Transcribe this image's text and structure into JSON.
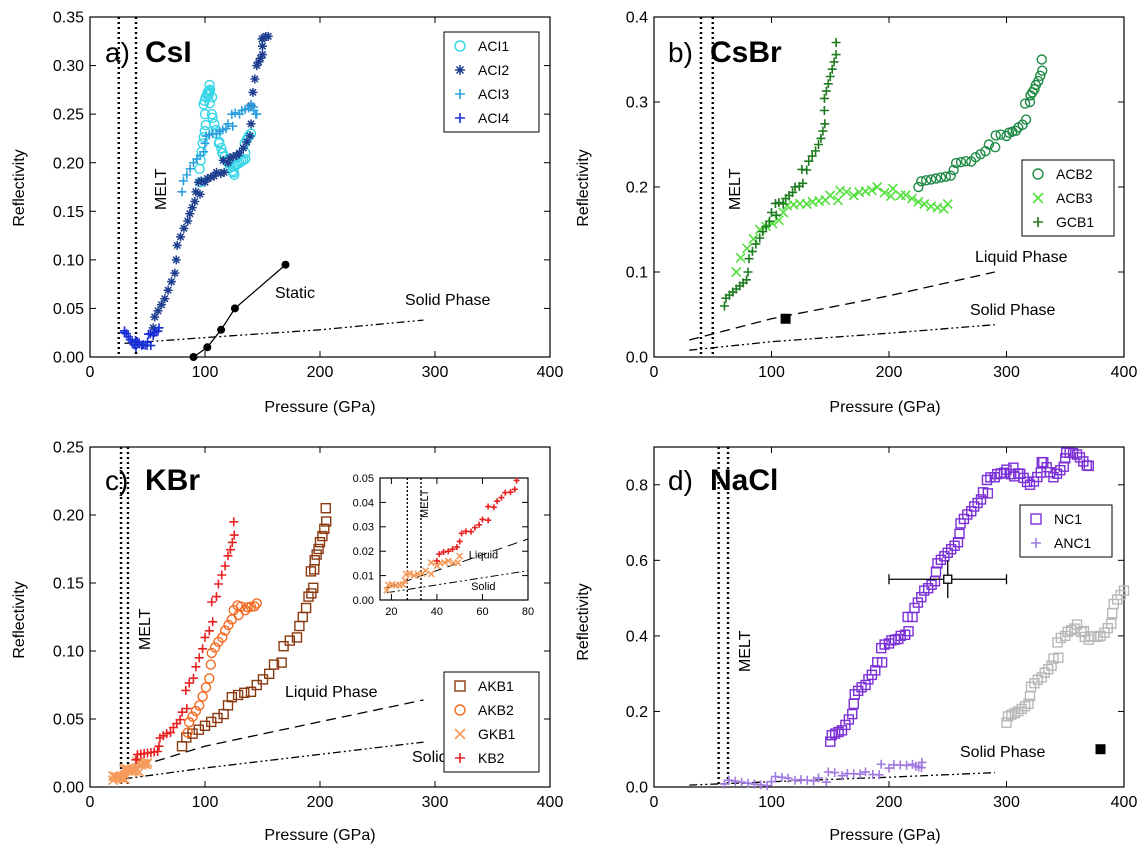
{
  "figure": {
    "panels": [
      {
        "panel_label": "a)",
        "material": "CsI",
        "xlabel": "Pressure (GPa)",
        "ylabel": "Reflectivity",
        "melt_label": "MELT"
      },
      {
        "panel_label": "b)",
        "material": "CsBr",
        "xlabel": "Pressure (GPa)",
        "ylabel": "Reflectivity",
        "melt_label": "MELT"
      },
      {
        "panel_label": "c)",
        "material": "KBr",
        "xlabel": "Pressure (GPa)",
        "ylabel": "Reflectivity",
        "melt_label": "MELT"
      },
      {
        "panel_label": "d)",
        "material": "NaCl",
        "xlabel": "Pressure (GPa)",
        "ylabel": "Reflectivity",
        "melt_label": "MELT"
      }
    ]
  },
  "chart_data": [
    {
      "type": "scatter",
      "title": "a) CsI",
      "xlabel": "Pressure (GPa)",
      "ylabel": "Reflectivity",
      "xlim": [
        0,
        400
      ],
      "ylim": [
        0,
        0.35
      ],
      "xticks": [
        0,
        100,
        200,
        300,
        400
      ],
      "yticks": [
        0.0,
        0.05,
        0.1,
        0.15,
        0.2,
        0.25,
        0.3,
        0.35
      ],
      "ytick_labels": [
        "0.00",
        "0.05",
        "0.10",
        "0.15",
        "0.20",
        "0.25",
        "0.30",
        "0.35"
      ],
      "grid": false,
      "legend_position": "top-right",
      "melt_lines_x": [
        25,
        40
      ],
      "series": [
        {
          "name": "ACI1",
          "marker": "circle",
          "color": "#33d6e8",
          "x": [
            96,
            98,
            100,
            102,
            104,
            106,
            110,
            115,
            120,
            125,
            130,
            135,
            140
          ],
          "y": [
            0.18,
            0.22,
            0.25,
            0.27,
            0.28,
            0.25,
            0.23,
            0.21,
            0.2,
            0.19,
            0.2,
            0.21,
            0.23
          ]
        },
        {
          "name": "ACI2",
          "marker": "asterisk",
          "color": "#1e3f8f",
          "x": [
            55,
            65,
            75,
            85,
            92,
            100,
            110,
            120,
            130,
            140,
            145,
            150,
            155
          ],
          "y": [
            0.03,
            0.06,
            0.1,
            0.14,
            0.17,
            0.18,
            0.19,
            0.2,
            0.21,
            0.24,
            0.3,
            0.32,
            0.33
          ]
        },
        {
          "name": "ACI3",
          "marker": "plus",
          "color": "#2ea0e0",
          "x": [
            80,
            90,
            100,
            110,
            120,
            130,
            140,
            145
          ],
          "y": [
            0.17,
            0.2,
            0.22,
            0.23,
            0.24,
            0.25,
            0.26,
            0.25
          ]
        },
        {
          "name": "ACI4",
          "marker": "plus",
          "color": "#1b2fd6",
          "x": [
            30,
            35,
            40,
            45,
            50,
            55,
            60
          ],
          "y": [
            0.025,
            0.018,
            0.012,
            0.012,
            0.015,
            0.022,
            0.03
          ]
        }
      ],
      "lines": [
        {
          "name": "Static",
          "style": "solid-markers",
          "x": [
            90,
            102,
            114,
            126,
            170
          ],
          "y": [
            0.0,
            0.01,
            0.028,
            0.05,
            0.095
          ]
        },
        {
          "name": "Solid Phase",
          "style": "dash-dot",
          "x": [
            30,
            100,
            200,
            290
          ],
          "y": [
            0.014,
            0.02,
            0.028,
            0.038
          ]
        }
      ],
      "annotations": [
        "Static",
        "Solid Phase",
        "MELT"
      ]
    },
    {
      "type": "scatter",
      "title": "b) CsBr",
      "xlabel": "Pressure (GPa)",
      "ylabel": "Reflectivity",
      "xlim": [
        0,
        400
      ],
      "ylim": [
        0,
        0.4
      ],
      "xticks": [
        0,
        100,
        200,
        300,
        400
      ],
      "yticks": [
        0.0,
        0.1,
        0.2,
        0.3,
        0.4
      ],
      "ytick_labels": [
        "0.0",
        "0.1",
        "0.2",
        "0.3",
        "0.4"
      ],
      "grid": false,
      "legend_position": "center-right",
      "melt_lines_x": [
        40,
        50
      ],
      "series": [
        {
          "name": "ACB2",
          "marker": "circle",
          "color": "#1e8a45",
          "x": [
            225,
            240,
            255,
            270,
            285,
            300,
            310,
            320,
            325,
            330
          ],
          "y": [
            0.2,
            0.21,
            0.22,
            0.23,
            0.25,
            0.26,
            0.27,
            0.3,
            0.32,
            0.35
          ]
        },
        {
          "name": "ACB3",
          "marker": "x",
          "color": "#55e040",
          "x": [
            70,
            90,
            110,
            130,
            150,
            170,
            190,
            210,
            230,
            250
          ],
          "y": [
            0.1,
            0.15,
            0.17,
            0.18,
            0.19,
            0.19,
            0.2,
            0.19,
            0.18,
            0.18
          ]
        },
        {
          "name": "GCB1",
          "marker": "plus",
          "color": "#1e7a1e",
          "x": [
            60,
            70,
            80,
            90,
            100,
            110,
            120,
            130,
            140,
            145,
            150,
            155
          ],
          "y": [
            0.06,
            0.08,
            0.1,
            0.14,
            0.17,
            0.18,
            0.2,
            0.22,
            0.25,
            0.29,
            0.33,
            0.37
          ]
        }
      ],
      "lines": [
        {
          "name": "Liquid Phase",
          "style": "dashed",
          "x": [
            30,
            100,
            200,
            290
          ],
          "y": [
            0.02,
            0.045,
            0.072,
            0.1
          ]
        },
        {
          "name": "Solid Phase",
          "style": "dash-dot",
          "x": [
            30,
            100,
            200,
            290
          ],
          "y": [
            0.008,
            0.018,
            0.028,
            0.038
          ]
        }
      ],
      "points": [
        {
          "x": 112,
          "y": 0.045,
          "marker": "filled-square"
        }
      ],
      "annotations": [
        "Liquid Phase",
        "Solid Phase",
        "MELT"
      ]
    },
    {
      "type": "scatter",
      "title": "c) KBr",
      "xlabel": "Pressure (GPa)",
      "ylabel": "Reflectivity",
      "xlim": [
        0,
        400
      ],
      "ylim": [
        0,
        0.25
      ],
      "xticks": [
        0,
        100,
        200,
        300,
        400
      ],
      "yticks": [
        0.0,
        0.05,
        0.1,
        0.15,
        0.2,
        0.25
      ],
      "ytick_labels": [
        "0.00",
        "0.05",
        "0.10",
        "0.15",
        "0.20",
        "0.25"
      ],
      "grid": false,
      "legend_position": "lower-right",
      "melt_lines_x": [
        27,
        33
      ],
      "series": [
        {
          "name": "AKB1",
          "marker": "square",
          "color": "#8b3a10",
          "x": [
            80,
            100,
            120,
            140,
            160,
            180,
            190,
            195,
            200,
            205
          ],
          "y": [
            0.03,
            0.045,
            0.06,
            0.07,
            0.09,
            0.11,
            0.14,
            0.16,
            0.18,
            0.205
          ]
        },
        {
          "name": "AKB2",
          "marker": "circle",
          "color": "#f26a21",
          "x": [
            85,
            95,
            105,
            115,
            125,
            135,
            145
          ],
          "y": [
            0.04,
            0.06,
            0.09,
            0.11,
            0.13,
            0.13,
            0.135
          ]
        },
        {
          "name": "GKB1",
          "marker": "x",
          "color": "#f59a5a",
          "x": [
            20,
            25,
            30,
            35,
            40,
            45,
            50
          ],
          "y": [
            0.005,
            0.007,
            0.009,
            0.012,
            0.014,
            0.016,
            0.018
          ]
        },
        {
          "name": "KB2",
          "marker": "plus",
          "color": "#e82020",
          "x": [
            40,
            50,
            60,
            70,
            80,
            90,
            100,
            110,
            120,
            125
          ],
          "y": [
            0.02,
            0.025,
            0.03,
            0.04,
            0.055,
            0.08,
            0.11,
            0.14,
            0.17,
            0.195
          ]
        }
      ],
      "lines": [
        {
          "name": "Liquid Phase",
          "style": "dashed",
          "x": [
            30,
            100,
            200,
            290
          ],
          "y": [
            0.012,
            0.03,
            0.048,
            0.064
          ]
        },
        {
          "name": "Solid Phase",
          "style": "dash-dot",
          "x": [
            30,
            100,
            200,
            290
          ],
          "y": [
            0.006,
            0.014,
            0.024,
            0.033
          ]
        }
      ],
      "inset": {
        "xlim": [
          15,
          80
        ],
        "ylim": [
          0,
          0.05
        ],
        "xticks": [
          20,
          40,
          60,
          80
        ],
        "yticks": [
          0.0,
          0.01,
          0.02,
          0.03,
          0.04,
          0.05
        ],
        "ytick_labels": [
          "0.00",
          "0.01",
          "0.02",
          "0.03",
          "0.04",
          "0.05"
        ],
        "melt_lines_x": [
          27,
          33
        ],
        "series": [
          {
            "name": "GKB1",
            "marker": "x",
            "color": "#f59a5a",
            "x": [
              18,
              22,
              26,
              30,
              35,
              40,
              45,
              50
            ],
            "y": [
              0.004,
              0.006,
              0.008,
              0.01,
              0.012,
              0.014,
              0.016,
              0.018
            ]
          },
          {
            "name": "KB2",
            "marker": "plus",
            "color": "#e82020",
            "x": [
              40,
              45,
              50,
              55,
              60,
              65,
              70,
              75
            ],
            "y": [
              0.016,
              0.02,
              0.024,
              0.028,
              0.033,
              0.038,
              0.044,
              0.049
            ]
          }
        ],
        "lines": [
          {
            "name": "Liquid",
            "style": "dashed",
            "x": [
              18,
              80
            ],
            "y": [
              0.005,
              0.025
            ]
          },
          {
            "name": "Solid",
            "style": "dash-dot",
            "x": [
              18,
              80
            ],
            "y": [
              0.003,
              0.012
            ]
          }
        ],
        "annotations": [
          "MELT",
          "Liquid",
          "Solid"
        ]
      },
      "annotations": [
        "Liquid Phase",
        "Solid Phase",
        "MELT"
      ]
    },
    {
      "type": "scatter",
      "title": "d) NaCl",
      "xlabel": "Pressure (GPa)",
      "ylabel": "Reflectivity",
      "xlim": [
        0,
        400
      ],
      "ylim": [
        0,
        0.9
      ],
      "xticks": [
        0,
        100,
        200,
        300,
        400
      ],
      "yticks": [
        0.0,
        0.2,
        0.4,
        0.6,
        0.8
      ],
      "ytick_labels": [
        "0.0",
        "0.2",
        "0.4",
        "0.6",
        "0.8"
      ],
      "grid": false,
      "legend_position": "upper-right",
      "melt_lines_x": [
        55,
        63
      ],
      "series": [
        {
          "name": "NC1",
          "marker": "square",
          "color": "#7b2fd6",
          "x": [
            150,
            160,
            170,
            180,
            190,
            200,
            210,
            220,
            230,
            240,
            250,
            260,
            270,
            280,
            290,
            300,
            310,
            320,
            330,
            340,
            350,
            360,
            370
          ],
          "y": [
            0.12,
            0.15,
            0.22,
            0.27,
            0.33,
            0.38,
            0.4,
            0.45,
            0.52,
            0.57,
            0.62,
            0.67,
            0.73,
            0.78,
            0.82,
            0.84,
            0.83,
            0.8,
            0.86,
            0.82,
            0.87,
            0.88,
            0.85
          ]
        },
        {
          "name": "ANC1",
          "marker": "plus",
          "color": "#a07ae0",
          "x": [
            60,
            80,
            100,
            120,
            140,
            160,
            180,
            200,
            220,
            228
          ],
          "y": [
            0.008,
            0.01,
            0.014,
            0.018,
            0.024,
            0.03,
            0.04,
            0.05,
            0.06,
            0.065
          ]
        },
        {
          "name": "",
          "marker": "square",
          "color": "#b8b8b8",
          "x": [
            300,
            310,
            320,
            330,
            340,
            350,
            360,
            370,
            380,
            390,
            400
          ],
          "y": [
            0.17,
            0.2,
            0.24,
            0.29,
            0.34,
            0.4,
            0.43,
            0.39,
            0.4,
            0.46,
            0.52
          ]
        }
      ],
      "lines": [
        {
          "name": "Solid Phase",
          "style": "dash-dot",
          "x": [
            30,
            100,
            200,
            290
          ],
          "y": [
            0.005,
            0.014,
            0.026,
            0.038
          ]
        }
      ],
      "errorbar": {
        "x": 250,
        "y": 0.55,
        "xerr": 50,
        "yerr": 0.05
      },
      "points": [
        {
          "x": 380,
          "y": 0.1,
          "marker": "filled-square"
        }
      ],
      "annotations": [
        "Solid Phase",
        "MELT"
      ]
    }
  ]
}
